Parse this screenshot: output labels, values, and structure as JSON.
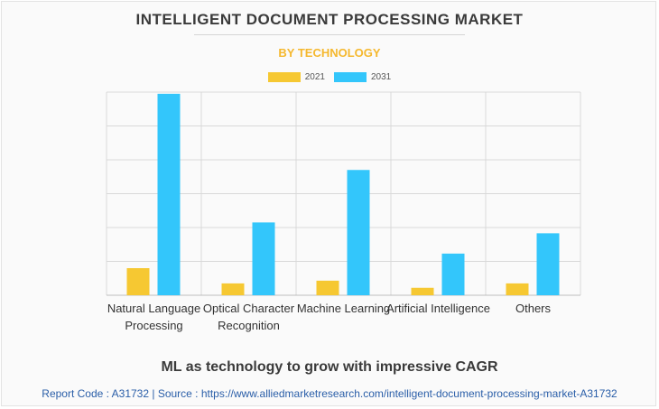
{
  "header": {
    "title": "INTELLIGENT DOCUMENT PROCESSING MARKET",
    "subtitle": "BY TECHNOLOGY"
  },
  "caption": "ML as technology to grow with impressive CAGR",
  "footer": "Report Code : A31732  |  Source : https://www.alliedmarketresearch.com/intelligent-document-processing-market-A31732",
  "colors": {
    "series_2021": "#f6c832",
    "series_2031": "#33c6fb",
    "grid": "#d9d9d9",
    "axis": "#bdbdbd"
  },
  "chart_data": {
    "type": "bar",
    "title": "INTELLIGENT DOCUMENT PROCESSING MARKET",
    "subtitle": "BY TECHNOLOGY",
    "categories": [
      [
        "Natural Language",
        "Processing"
      ],
      [
        "Optical Character",
        "Recognition"
      ],
      [
        "Machine Learning"
      ],
      [
        "Artificial Intelligence"
      ],
      [
        "Others"
      ]
    ],
    "series": [
      {
        "name": "2021",
        "values": [
          0.8,
          0.35,
          0.43,
          0.22,
          0.35
        ]
      },
      {
        "name": "2031",
        "values": [
          5.95,
          2.15,
          3.7,
          1.23,
          1.83
        ]
      }
    ],
    "ylim": [
      0,
      6
    ],
    "grid": true,
    "legend": "top-center",
    "xlabel": "",
    "ylabel": ""
  }
}
